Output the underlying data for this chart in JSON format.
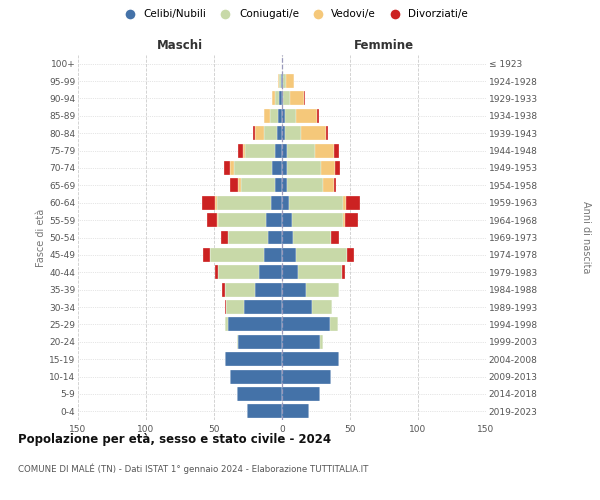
{
  "age_groups": [
    "0-4",
    "5-9",
    "10-14",
    "15-19",
    "20-24",
    "25-29",
    "30-34",
    "35-39",
    "40-44",
    "45-49",
    "50-54",
    "55-59",
    "60-64",
    "65-69",
    "70-74",
    "75-79",
    "80-84",
    "85-89",
    "90-94",
    "95-99",
    "100+"
  ],
  "birth_years": [
    "2019-2023",
    "2014-2018",
    "2009-2013",
    "2004-2008",
    "1999-2003",
    "1994-1998",
    "1989-1993",
    "1984-1988",
    "1979-1983",
    "1974-1978",
    "1969-1973",
    "1964-1968",
    "1959-1963",
    "1954-1958",
    "1949-1953",
    "1944-1948",
    "1939-1943",
    "1934-1938",
    "1929-1933",
    "1924-1928",
    "≤ 1923"
  ],
  "maschi": {
    "celibi": [
      26,
      33,
      38,
      42,
      32,
      40,
      28,
      20,
      17,
      13,
      10,
      12,
      8,
      5,
      7,
      5,
      4,
      3,
      2,
      1,
      0
    ],
    "coniugati": [
      0,
      0,
      0,
      0,
      1,
      2,
      13,
      22,
      30,
      40,
      30,
      35,
      40,
      25,
      28,
      22,
      9,
      6,
      3,
      1,
      0
    ],
    "vedovi": [
      0,
      0,
      0,
      0,
      0,
      0,
      0,
      0,
      0,
      0,
      0,
      1,
      1,
      2,
      3,
      2,
      7,
      4,
      2,
      1,
      0
    ],
    "divorziati": [
      0,
      0,
      0,
      0,
      0,
      0,
      1,
      2,
      2,
      5,
      5,
      7,
      10,
      6,
      5,
      3,
      1,
      0,
      0,
      0,
      0
    ]
  },
  "femmine": {
    "nubili": [
      20,
      28,
      36,
      42,
      28,
      35,
      22,
      18,
      12,
      10,
      8,
      7,
      5,
      4,
      4,
      4,
      2,
      2,
      1,
      1,
      0
    ],
    "coniugate": [
      0,
      0,
      0,
      0,
      2,
      6,
      15,
      24,
      32,
      38,
      28,
      38,
      40,
      26,
      25,
      20,
      12,
      8,
      5,
      2,
      0
    ],
    "vedove": [
      0,
      0,
      0,
      0,
      0,
      0,
      0,
      0,
      0,
      0,
      0,
      1,
      2,
      8,
      10,
      14,
      18,
      16,
      10,
      6,
      0
    ],
    "divorziate": [
      0,
      0,
      0,
      0,
      0,
      0,
      0,
      0,
      2,
      5,
      6,
      10,
      10,
      2,
      4,
      4,
      2,
      1,
      1,
      0,
      0
    ]
  },
  "colors": {
    "celibi": "#4472a8",
    "coniugati": "#c8d9a8",
    "vedovi": "#f5c87a",
    "divorziati": "#cc2222"
  },
  "xlim": 150,
  "title": "Popolazione per età, sesso e stato civile - 2024",
  "subtitle": "COMUNE DI MALÉ (TN) - Dati ISTAT 1° gennaio 2024 - Elaborazione TUTTITALIA.IT",
  "legend_labels": [
    "Celibi/Nubili",
    "Coniugati/e",
    "Vedovi/e",
    "Divorziati/e"
  ],
  "ylabel_left": "Fasce di età",
  "ylabel_right": "Anni di nascita",
  "xlabel_maschi": "Maschi",
  "xlabel_femmine": "Femmine"
}
